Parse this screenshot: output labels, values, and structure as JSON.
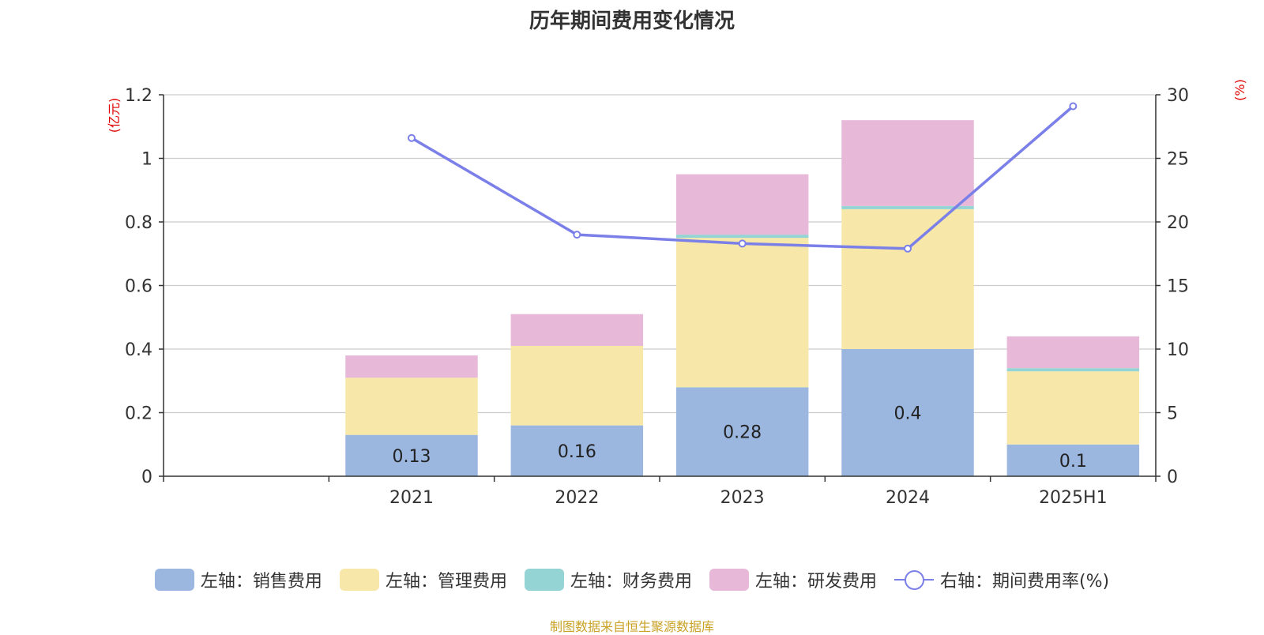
{
  "chart_data": {
    "type": "bar",
    "title": "历年期间费用变化情况",
    "categories": [
      "2021",
      "2022",
      "2023",
      "2024",
      "2025H1"
    ],
    "series": [
      {
        "name": "左轴：销售费用",
        "axis": "left",
        "color": "#9BB7E0",
        "values": [
          0.13,
          0.16,
          0.28,
          0.4,
          0.1
        ],
        "labels": [
          "0.13",
          "0.16",
          "0.28",
          "0.4",
          "0.1"
        ]
      },
      {
        "name": "左轴：管理费用",
        "axis": "left",
        "color": "#F7E7A8",
        "values": [
          0.18,
          0.25,
          0.47,
          0.44,
          0.23
        ]
      },
      {
        "name": "左轴：财务费用",
        "axis": "left",
        "color": "#95D4D4",
        "values": [
          0.0,
          0.0,
          0.01,
          0.01,
          0.01
        ]
      },
      {
        "name": "左轴：研发费用",
        "axis": "left",
        "color": "#E8B8D8",
        "values": [
          0.07,
          0.1,
          0.19,
          0.27,
          0.1
        ]
      },
      {
        "name": "右轴：期间费用率(%)",
        "axis": "right",
        "type": "line",
        "color": "#7B7FE8",
        "values": [
          26.6,
          19.0,
          18.3,
          17.9,
          29.1
        ]
      }
    ],
    "left_axis": {
      "label": "(亿元)",
      "ylim": [
        0,
        1.2
      ],
      "ticks": [
        "0",
        "0.2",
        "0.4",
        "0.6",
        "0.8",
        "1",
        "1.2"
      ]
    },
    "right_axis": {
      "label": "(%)",
      "ylim": [
        0,
        30
      ],
      "ticks": [
        "0",
        "5",
        "10",
        "15",
        "20",
        "25",
        "30"
      ]
    },
    "grid": true,
    "legend_position": "bottom"
  },
  "source": "制图数据来自恒生聚源数据库"
}
